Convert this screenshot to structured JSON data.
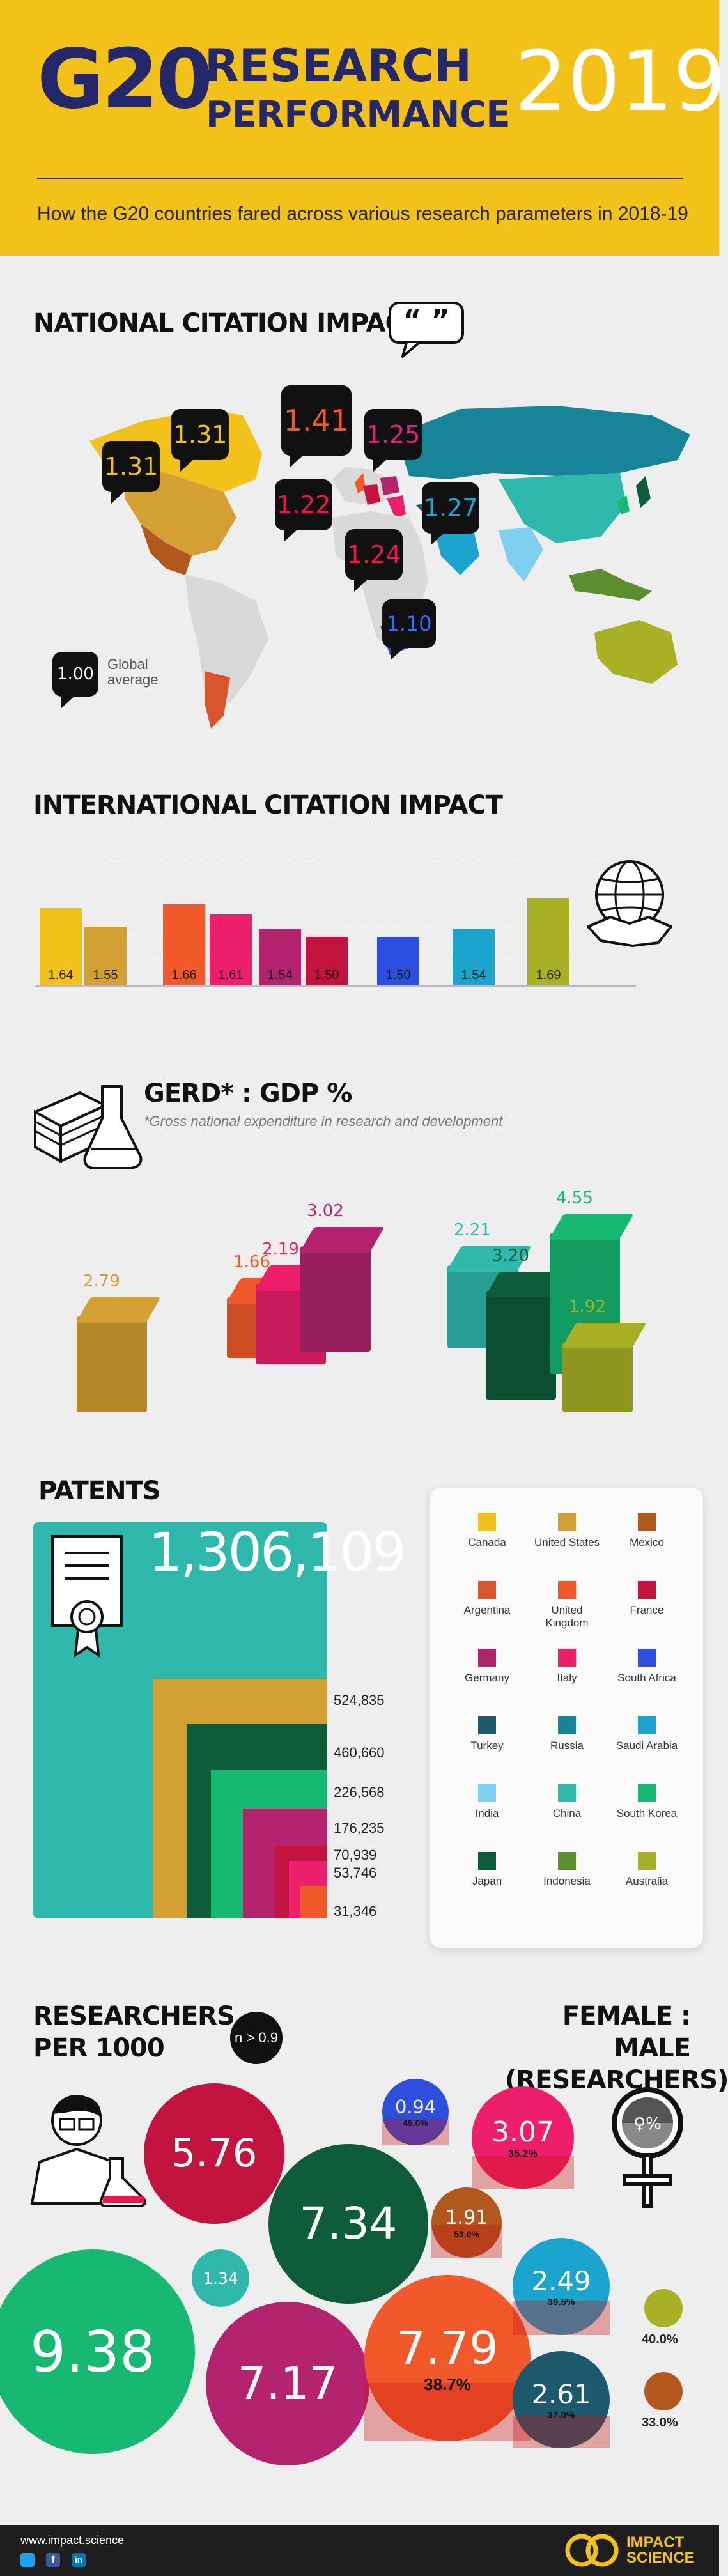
{
  "header": {
    "g20": "G20",
    "research": "RESEARCH",
    "performance": "PERFORMANCE",
    "year": "2019",
    "subtitle": "How the G20 countries fared across various research parameters in 2018-19"
  },
  "nci": {
    "title": "NATIONAL CITATION IMPACT",
    "global_value": "1.00",
    "global_label_1": "Global",
    "global_label_2": "average",
    "bubbles": [
      {
        "value": "1.31",
        "color": "#f2c21a"
      },
      {
        "value": "1.31",
        "color": "#f2c21a"
      },
      {
        "value": "1.41",
        "color": "#f1592a"
      },
      {
        "value": "1.25",
        "color": "#d6247c"
      },
      {
        "value": "1.22",
        "color": "#e8194d"
      },
      {
        "value": "1.27",
        "color": "#1ba4ce"
      },
      {
        "value": "1.24",
        "color": "#e8194d"
      },
      {
        "value": "1.10",
        "color": "#3a6bff"
      }
    ]
  },
  "icc": {
    "title": "INTERNATIONAL CITATION IMPACT"
  },
  "gerd": {
    "title": "GERD* : GDP %",
    "footnote": "*Gross national expenditure in research and development",
    "values": [
      "2.79",
      "1.66",
      "2.19",
      "3.02",
      "2.21",
      "3.20",
      "4.55",
      "1.92"
    ]
  },
  "patents": {
    "title": "PATENTS",
    "values": [
      "1,306,109",
      "524,835",
      "460,660",
      "226,568",
      "176,235",
      "70,939",
      "53,746",
      "31,346"
    ]
  },
  "legend": [
    {
      "name": "Canada",
      "color": "#f2c21a"
    },
    {
      "name": "United States",
      "color": "#d4a033"
    },
    {
      "name": "Mexico",
      "color": "#b2581d"
    },
    {
      "name": "Argentina",
      "color": "#d9552e"
    },
    {
      "name": "United Kingdom",
      "color": "#f1592a"
    },
    {
      "name": "France",
      "color": "#c2143f"
    },
    {
      "name": "Germany",
      "color": "#b3236e"
    },
    {
      "name": "Italy",
      "color": "#ed1f6a"
    },
    {
      "name": "South Africa",
      "color": "#2d4fe0"
    },
    {
      "name": "Turkey",
      "color": "#1d5a6e"
    },
    {
      "name": "Russia",
      "color": "#18849a"
    },
    {
      "name": "Saudi Arabia",
      "color": "#1ba4ce"
    },
    {
      "name": "India",
      "color": "#7fd0f0"
    },
    {
      "name": "China",
      "color": "#2fb9ad"
    },
    {
      "name": "South Korea",
      "color": "#16b872"
    },
    {
      "name": "Japan",
      "color": "#0e5c3a"
    },
    {
      "name": "Indonesia",
      "color": "#5a8e2e"
    },
    {
      "name": "Australia",
      "color": "#a8b024"
    }
  ],
  "researchers": {
    "title_1": "RESEARCHERS",
    "title_2": "PER 1000",
    "note": "n > 0.9",
    "female_1": "FEMALE : MALE",
    "female_2": "(RESEARCHERS)",
    "symbol": "♀%",
    "circles": [
      {
        "value": "5.76",
        "color": "#c2143f",
        "pct": ""
      },
      {
        "value": "7.34",
        "color": "#0e5c3a",
        "pct": ""
      },
      {
        "value": "1.34",
        "color": "#2fb9ad",
        "pct": ""
      },
      {
        "value": "9.38",
        "color": "#16b872",
        "pct": ""
      },
      {
        "value": "7.17",
        "color": "#b3236e",
        "pct": ""
      },
      {
        "value": "7.79",
        "color": "#f1592a",
        "pct": "38.7%"
      },
      {
        "value": "0.94",
        "color": "#2d4fe0",
        "pct": "45.0%"
      },
      {
        "value": "3.07",
        "color": "#ed1f6a",
        "pct": "35.2%"
      },
      {
        "value": "1.91",
        "color": "#b2581d",
        "pct": "53.0%"
      },
      {
        "value": "2.49",
        "color": "#1ba4ce",
        "pct": "39.5%"
      },
      {
        "value": "2.61",
        "color": "#1d5a6e",
        "pct": "37.0%"
      }
    ],
    "small": [
      {
        "pct": "40.0%",
        "color": "#a8b024"
      },
      {
        "pct": "33.0%",
        "color": "#b2581d"
      }
    ]
  },
  "footer": {
    "url": "www.impact.science",
    "brand_1": "IMPACT",
    "brand_2": "SCIENCE"
  },
  "chart_data": [
    {
      "type": "bar",
      "title": "INTERNATIONAL CITATION IMPACT",
      "values": [
        1.64,
        1.55,
        1.66,
        1.61,
        1.54,
        1.5,
        1.5,
        1.54,
        1.69
      ],
      "labels": [
        "1.64",
        "1.55",
        "1.66",
        "1.61",
        "1.54",
        "1.50",
        "1.50",
        "1.54",
        "1.69"
      ],
      "colors": [
        "#f2c21a",
        "#d4a033",
        "#f1592a",
        "#ed1f6a",
        "#b3236e",
        "#c2143f",
        "#2d4fe0",
        "#1ba4ce",
        "#a8b024"
      ],
      "groups": [
        [
          0,
          1
        ],
        [
          2,
          3,
          4,
          5
        ],
        [
          6
        ],
        [
          7
        ],
        [
          8
        ]
      ],
      "ylim": [
        1.2,
        1.7
      ]
    },
    {
      "type": "bar",
      "title": "GERD* : GDP %",
      "values": [
        2.79,
        1.66,
        2.19,
        3.02,
        2.21,
        3.2,
        4.55,
        1.92
      ],
      "colors": [
        "#d4a033",
        "#f1592a",
        "#ed1f6a",
        "#b3236e",
        "#2fb9ad",
        "#0e5c3a",
        "#16b872",
        "#a8b024"
      ]
    },
    {
      "type": "bar",
      "title": "PATENTS",
      "values": [
        1306109,
        524835,
        460660,
        226568,
        176235,
        70939,
        53746,
        31346
      ],
      "colors": [
        "#2fb9ad",
        "#d4a033",
        "#0e5c3a",
        "#16b872",
        "#b3236e",
        "#c2143f",
        "#ed1f6a",
        "#f1592a"
      ]
    },
    {
      "type": "scatter",
      "title": "RESEARCHERS PER 1000",
      "values": [
        5.76,
        7.34,
        1.34,
        9.38,
        7.17,
        7.79,
        0.94,
        3.07,
        1.91,
        2.49,
        2.61
      ],
      "female_pct": [
        null,
        null,
        null,
        null,
        null,
        38.7,
        45.0,
        35.2,
        53.0,
        39.5,
        37.0,
        40.0,
        33.0
      ]
    }
  ]
}
